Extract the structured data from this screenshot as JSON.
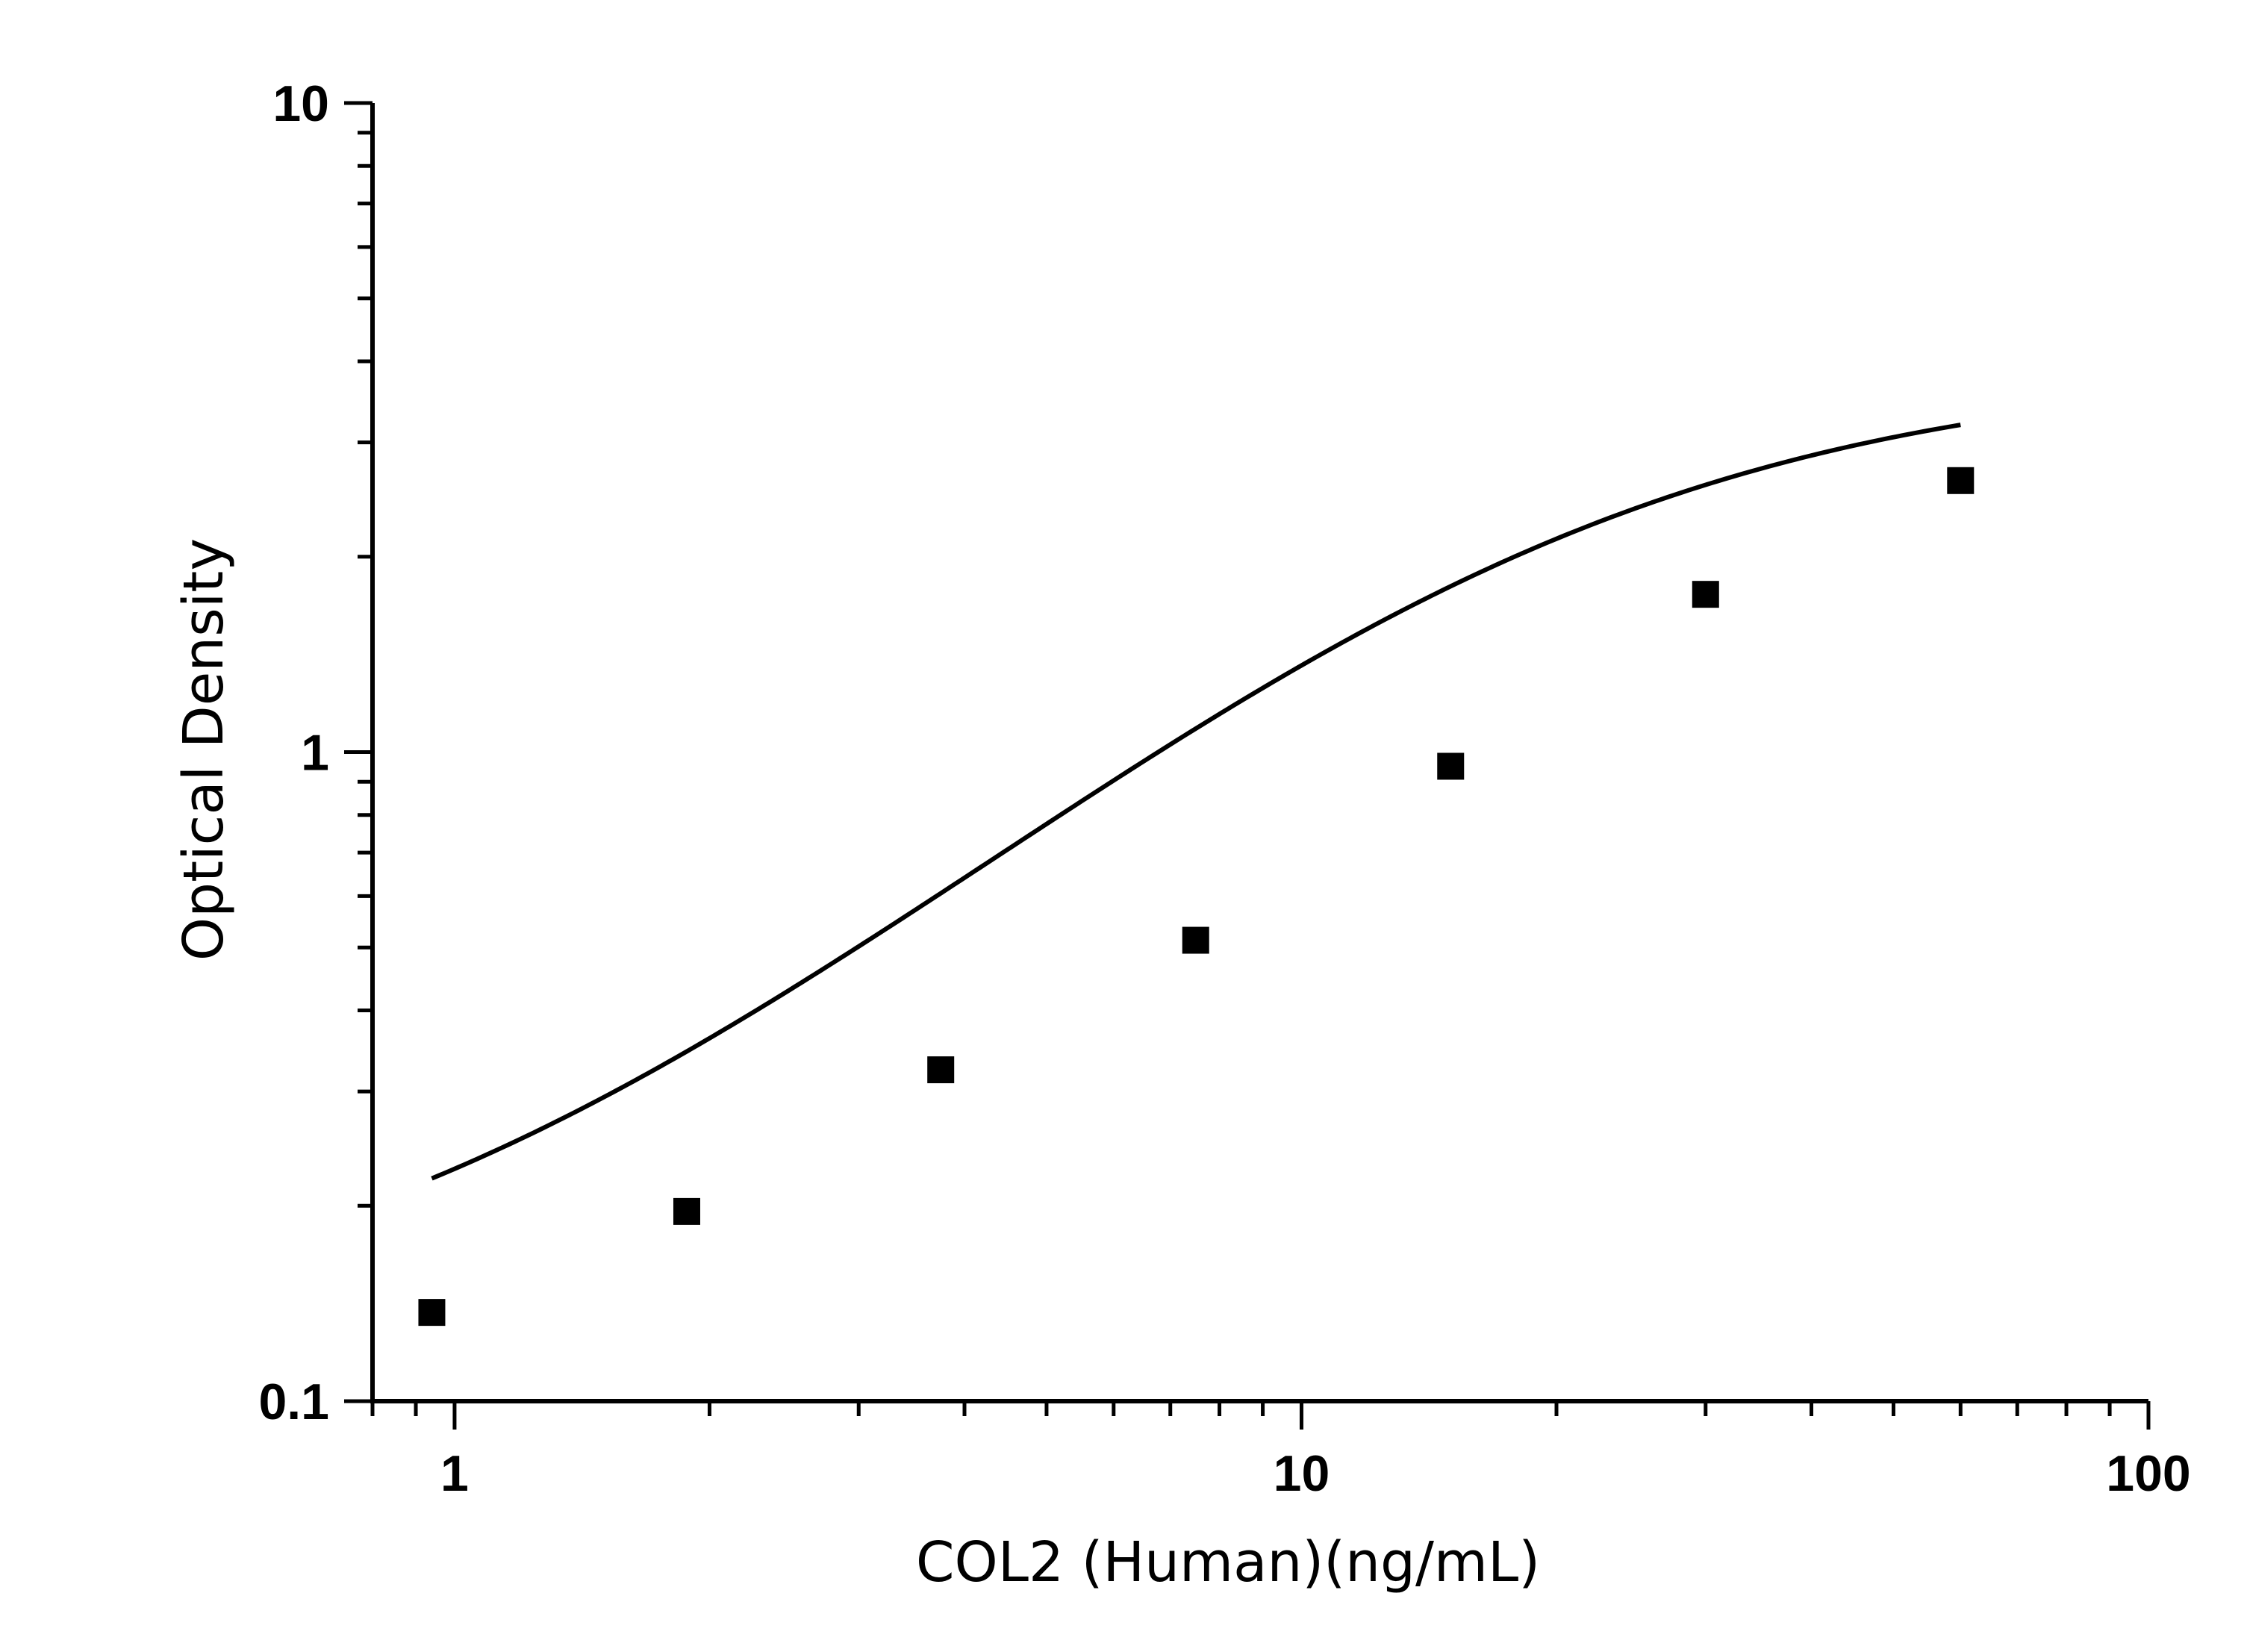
{
  "chart_data": {
    "type": "scatter",
    "title": "",
    "xlabel": "COL2 (Human)(ng/mL)",
    "ylabel": "Optical Density",
    "x_scale": "log",
    "y_scale": "log",
    "xlim": [
      0.8,
      100
    ],
    "ylim": [
      0.1,
      10
    ],
    "x_ticks": [
      {
        "value": 1,
        "label": "1"
      },
      {
        "value": 10,
        "label": "10"
      },
      {
        "value": 100,
        "label": "100"
      }
    ],
    "y_ticks": [
      {
        "value": 0.1,
        "label": "0.1"
      },
      {
        "value": 1,
        "label": "1"
      },
      {
        "value": 10,
        "label": "10"
      }
    ],
    "grid": false,
    "legend": "none",
    "series": [
      {
        "marker": "square",
        "color": "#000000",
        "x": [
          0.94,
          1.88,
          3.75,
          7.5,
          15,
          30,
          60
        ],
        "y": [
          0.137,
          0.196,
          0.324,
          0.513,
          0.951,
          1.75,
          2.62
        ]
      }
    ],
    "fit_curve": {
      "type": "4PL",
      "color": "#000000",
      "bottom": 0.12,
      "top": 3.9,
      "ec50": 18,
      "hill": 1.22
    }
  }
}
